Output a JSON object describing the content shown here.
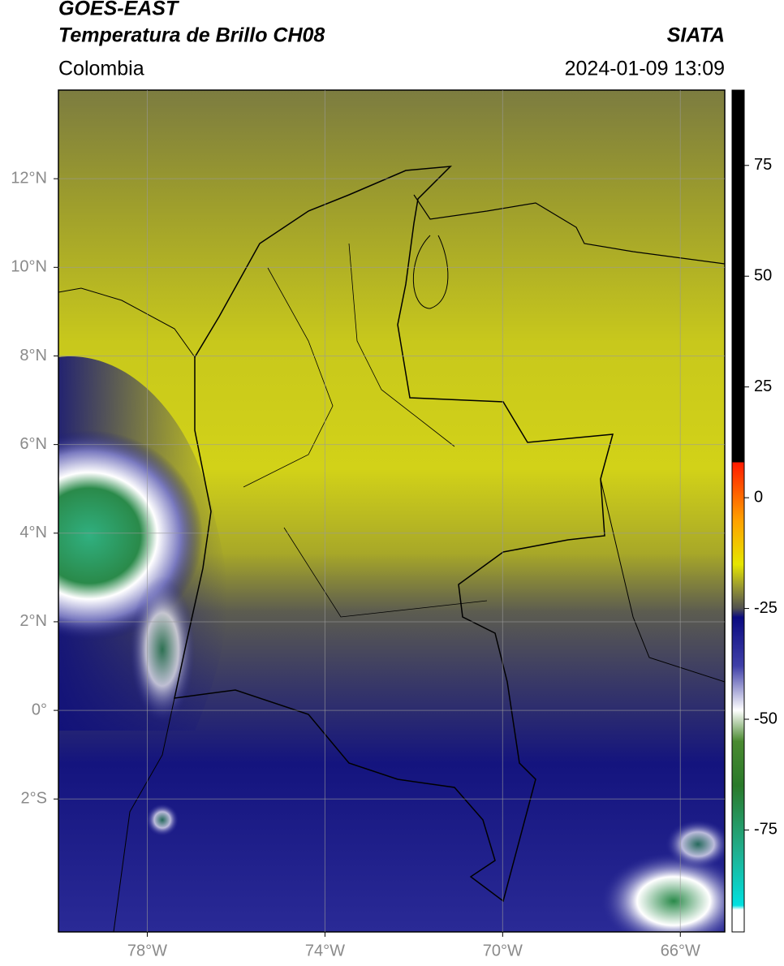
{
  "chart_data": {
    "type": "map",
    "title": "GOES-EAST",
    "subtitle": "Temperatura de Brillo CH08",
    "source": "SIATA",
    "region": "Colombia",
    "datetime": "2024-01-09 13:09",
    "xlim": [
      -80,
      -65
    ],
    "ylim": [
      -5,
      14
    ],
    "xticks": [
      {
        "value": -78,
        "label": "78°W"
      },
      {
        "value": -74,
        "label": "74°W"
      },
      {
        "value": -70,
        "label": "70°W"
      },
      {
        "value": -66,
        "label": "66°W"
      }
    ],
    "yticks": [
      {
        "value": 12,
        "label": "12°N"
      },
      {
        "value": 10,
        "label": "10°N"
      },
      {
        "value": 8,
        "label": "8°N"
      },
      {
        "value": 6,
        "label": "6°N"
      },
      {
        "value": 4,
        "label": "4°N"
      },
      {
        "value": 2,
        "label": "2°N"
      },
      {
        "value": 0,
        "label": "0°"
      },
      {
        "value": -2,
        "label": "2°S"
      }
    ],
    "grid": true,
    "colorbar": {
      "lim": [
        -98,
        92
      ],
      "ticks": [
        75,
        50,
        25,
        0,
        -25,
        -50,
        -75
      ],
      "stops": [
        {
          "value": 92,
          "color": "#000000"
        },
        {
          "value": 8,
          "color": "#000000"
        },
        {
          "value": 8,
          "color": "#ff1a00"
        },
        {
          "value": -5,
          "color": "#ffa000"
        },
        {
          "value": -15,
          "color": "#e6e600"
        },
        {
          "value": -20,
          "color": "#9a9a30"
        },
        {
          "value": -25,
          "color": "#505050"
        },
        {
          "value": -27,
          "color": "#0a0a80"
        },
        {
          "value": -38,
          "color": "#4040a8"
        },
        {
          "value": -48,
          "color": "#ffffff"
        },
        {
          "value": -55,
          "color": "#4a8a30"
        },
        {
          "value": -65,
          "color": "#2a7a2a"
        },
        {
          "value": -80,
          "color": "#20b090"
        },
        {
          "value": -92,
          "color": "#00e0e0"
        },
        {
          "value": -93,
          "color": "#ffffff"
        },
        {
          "value": -98,
          "color": "#ffffff"
        }
      ]
    }
  }
}
